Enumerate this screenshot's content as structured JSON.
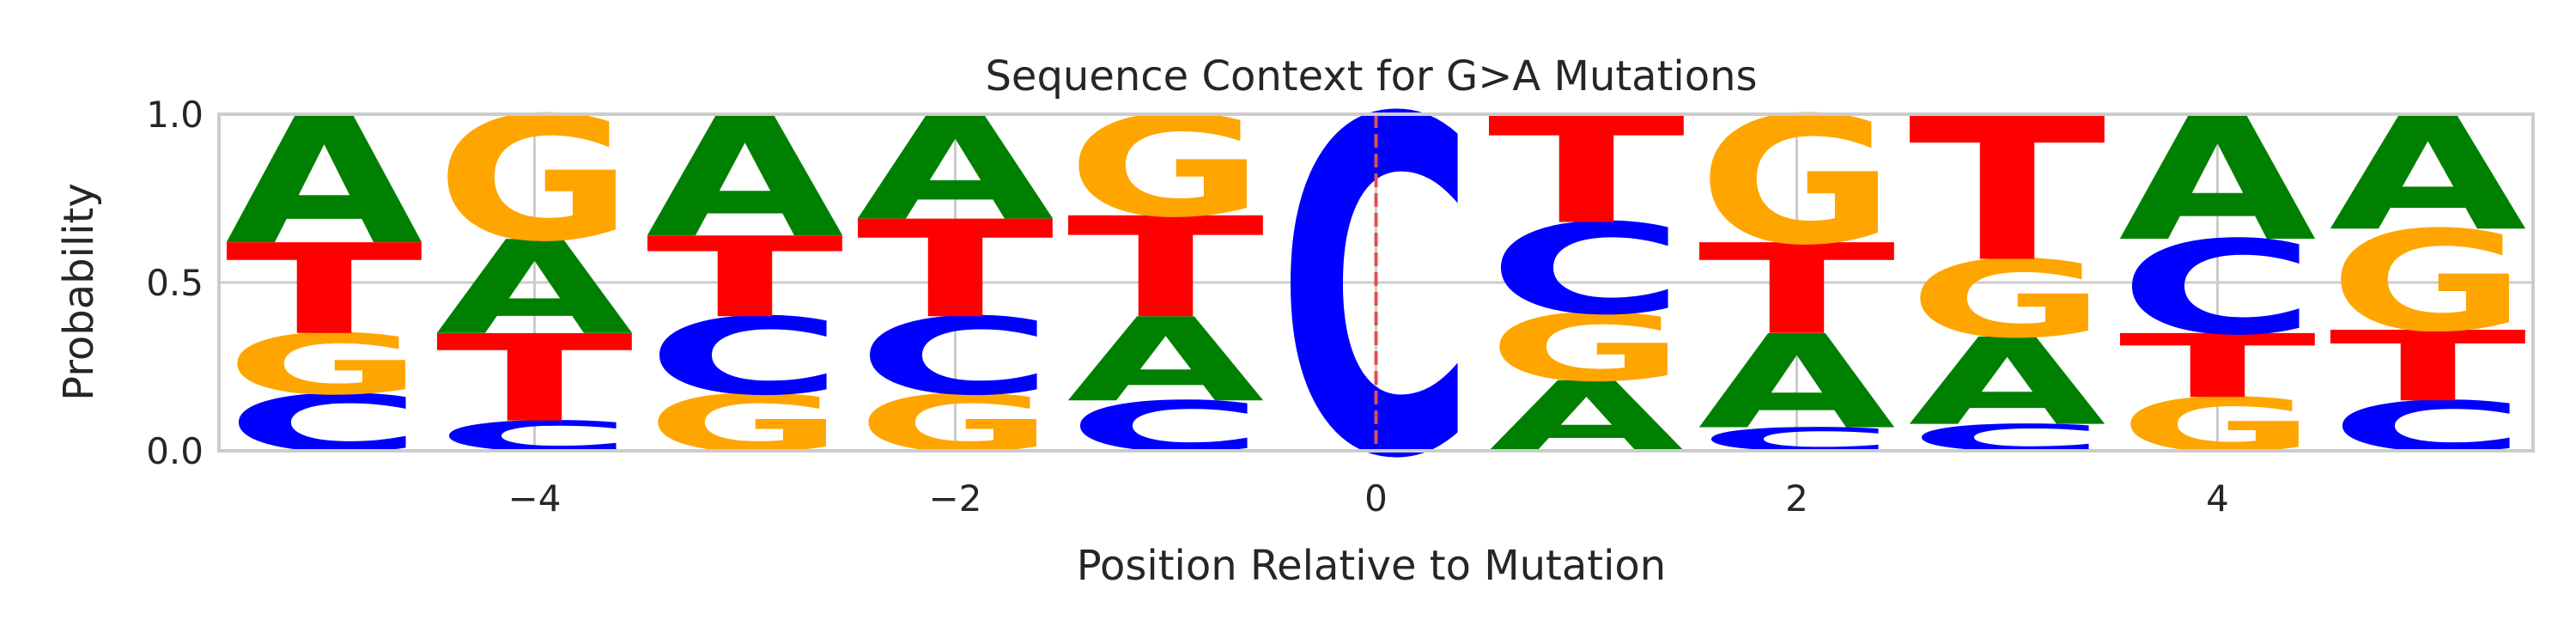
{
  "chart_data": {
    "type": "sequence-logo",
    "title": "Sequence Context for G>A Mutations",
    "xlabel": "Position Relative to Mutation",
    "ylabel": "Probability",
    "xlim": [
      -5.5,
      5.5
    ],
    "ylim": [
      0,
      1
    ],
    "x_ticks": [
      -4,
      -2,
      0,
      2,
      4
    ],
    "y_ticks": [
      0.0,
      0.5,
      1.0
    ],
    "x_tick_labels": [
      "−4",
      "−2",
      "0",
      "2",
      "4"
    ],
    "y_tick_labels": [
      "0.0",
      "0.5",
      "1.0"
    ],
    "grid": true,
    "mutation_marker_x": 0,
    "colors": {
      "A": "#008000",
      "C": "#0000ff",
      "G": "#ffa500",
      "T": "#ff0000",
      "marker": "#e05050",
      "grid": "#cccccc"
    },
    "positions": [
      {
        "x": -5,
        "stack": [
          {
            "base": "C",
            "p": 0.17
          },
          {
            "base": "G",
            "p": 0.18
          },
          {
            "base": "T",
            "p": 0.27
          },
          {
            "base": "A",
            "p": 0.38
          }
        ]
      },
      {
        "x": -4,
        "stack": [
          {
            "base": "C",
            "p": 0.09
          },
          {
            "base": "T",
            "p": 0.26
          },
          {
            "base": "A",
            "p": 0.28
          },
          {
            "base": "G",
            "p": 0.37
          }
        ]
      },
      {
        "x": -3,
        "stack": [
          {
            "base": "G",
            "p": 0.17
          },
          {
            "base": "C",
            "p": 0.23
          },
          {
            "base": "T",
            "p": 0.24
          },
          {
            "base": "A",
            "p": 0.36
          }
        ]
      },
      {
        "x": -2,
        "stack": [
          {
            "base": "G",
            "p": 0.17
          },
          {
            "base": "C",
            "p": 0.23
          },
          {
            "base": "T",
            "p": 0.29
          },
          {
            "base": "A",
            "p": 0.31
          }
        ]
      },
      {
        "x": -1,
        "stack": [
          {
            "base": "C",
            "p": 0.15
          },
          {
            "base": "A",
            "p": 0.25
          },
          {
            "base": "T",
            "p": 0.3
          },
          {
            "base": "G",
            "p": 0.3
          }
        ]
      },
      {
        "x": 0,
        "stack": [
          {
            "base": "C",
            "p": 1.0
          }
        ]
      },
      {
        "x": 1,
        "stack": [
          {
            "base": "A",
            "p": 0.21
          },
          {
            "base": "G",
            "p": 0.2
          },
          {
            "base": "C",
            "p": 0.27
          },
          {
            "base": "T",
            "p": 0.32
          }
        ]
      },
      {
        "x": 2,
        "stack": [
          {
            "base": "C",
            "p": 0.07
          },
          {
            "base": "A",
            "p": 0.28
          },
          {
            "base": "T",
            "p": 0.27
          },
          {
            "base": "G",
            "p": 0.38
          }
        ]
      },
      {
        "x": 3,
        "stack": [
          {
            "base": "C",
            "p": 0.08
          },
          {
            "base": "A",
            "p": 0.26
          },
          {
            "base": "G",
            "p": 0.23
          },
          {
            "base": "T",
            "p": 0.43
          }
        ]
      },
      {
        "x": 4,
        "stack": [
          {
            "base": "G",
            "p": 0.16
          },
          {
            "base": "T",
            "p": 0.19
          },
          {
            "base": "C",
            "p": 0.28
          },
          {
            "base": "A",
            "p": 0.37
          }
        ]
      },
      {
        "x": 5,
        "stack": [
          {
            "base": "C",
            "p": 0.15
          },
          {
            "base": "T",
            "p": 0.21
          },
          {
            "base": "G",
            "p": 0.3
          },
          {
            "base": "A",
            "p": 0.34
          }
        ]
      }
    ]
  }
}
